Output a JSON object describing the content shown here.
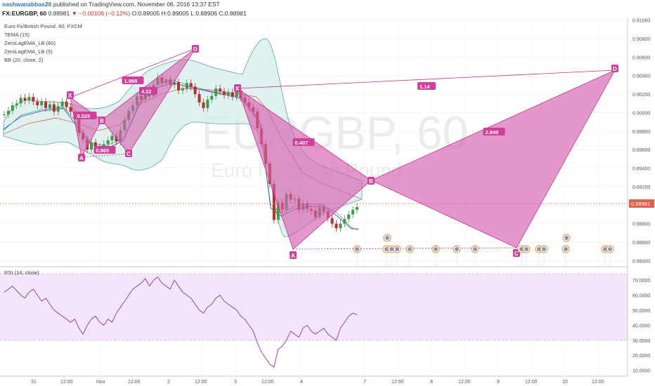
{
  "header": {
    "author": "nashwanabbas26",
    "published": "published on TradingView.com, November 06, 2016 13:37 EST",
    "symbol": "FX:EURGBP, 60",
    "last": "0.88981",
    "arrow": "▼",
    "change": "−0.00106 (−0.12%)",
    "ohlc": "O:0.89005 H:0.89005 L:0.88906 C:0.88981"
  },
  "legend": [
    "Euro Fx/British Pound, 60, FXCM",
    "TEMA (15)",
    "ZeroLagEMA_LB (60)",
    "ZeroLagEMA_LB (5)",
    "BB (20, close, 2)"
  ],
  "watermark": {
    "symbol": "EURGBP, 60",
    "name": "Euro Fx/British Pound"
  },
  "price_label": "0.88981",
  "rsi_label": "RSI (14, close)",
  "colors": {
    "pattern_fill": "#d65fae",
    "pattern_line": "#c2348e",
    "bb_fill": "#d6eeea",
    "bb_line": "#58a8a0",
    "rsi_line": "#8c4a9e",
    "rsi_band": "#f3e6fb",
    "price_line": "#e06050"
  },
  "chart_data": [
    {
      "type": "candlestick",
      "title": "Euro Fx/British Pound, 60, FXCM",
      "y_ticks": [
        "0.91000",
        "0.90800",
        "0.90600",
        "0.90400",
        "0.90200",
        "0.90000",
        "0.89800",
        "0.89600",
        "0.89400",
        "0.89200",
        "0.89000",
        "0.88800",
        "0.88600",
        "0.88400"
      ],
      "ylim": [
        0.8835,
        0.9102
      ],
      "x_ticks": [
        "31",
        "12:00",
        "Nov",
        "12:00",
        "2",
        "12:00",
        "3",
        "12:00",
        "4",
        "7",
        "12:00",
        "8",
        "12:00",
        "9",
        "12:00",
        "10",
        "12:00"
      ],
      "close_series": [
        0.8998,
        0.9002,
        0.9008,
        0.901,
        0.9016,
        0.9013,
        0.9017,
        0.9012,
        0.9008,
        0.9012,
        0.9005,
        0.9009,
        0.9001,
        0.9007,
        0.9012,
        0.9006,
        0.9001,
        0.8994,
        0.8978,
        0.8971,
        0.896,
        0.8968,
        0.8963,
        0.8961,
        0.8966,
        0.897,
        0.8975,
        0.8969,
        0.8981,
        0.8992,
        0.9002,
        0.9008,
        0.9018,
        0.9014,
        0.9025,
        0.9018,
        0.903,
        0.9038,
        0.9032,
        0.9036,
        0.903,
        0.9033,
        0.9024,
        0.9026,
        0.9032,
        0.9028,
        0.902,
        0.9011,
        0.9005,
        0.9014,
        0.9018,
        0.9026,
        0.9023,
        0.9019,
        0.9022,
        0.9017,
        0.9024,
        0.9016,
        0.9011,
        0.9006,
        0.9001,
        0.8983,
        0.8966,
        0.8945,
        0.8923,
        0.8884,
        0.8903,
        0.8895,
        0.8912,
        0.8906,
        0.8907,
        0.8895,
        0.8902,
        0.8896,
        0.8894,
        0.8887,
        0.8898,
        0.8893,
        0.8886,
        0.888,
        0.8875,
        0.888,
        0.8885,
        0.889,
        0.8895,
        0.8898
      ],
      "price_line": 0.88981,
      "patterns": [
        {
          "points": [
            "X",
            "A",
            "B",
            "C",
            "D"
          ],
          "ratios": [
            "0.525",
            "0.865",
            "1.988",
            "4.22"
          ]
        },
        {
          "points": [
            "X",
            "A",
            "B",
            "C",
            "D"
          ],
          "ratios": [
            "0.407",
            "2.849",
            "1.14"
          ]
        }
      ]
    },
    {
      "type": "line",
      "title": "RSI (14, close)",
      "y_ticks": [
        "70.0000",
        "60.0000",
        "50.0000",
        "40.0000",
        "30.0000",
        "20.0000",
        "10.0000"
      ],
      "ylim": [
        7,
        78
      ],
      "band": [
        30,
        70
      ],
      "values": [
        62,
        64,
        66,
        63,
        60,
        58,
        62,
        64,
        60,
        56,
        58,
        54,
        50,
        48,
        46,
        44,
        42,
        44,
        38,
        34,
        40,
        44,
        46,
        42,
        40,
        44,
        42,
        48,
        52,
        56,
        60,
        64,
        66,
        68,
        71,
        66,
        70,
        72,
        68,
        66,
        64,
        70,
        66,
        62,
        60,
        58,
        54,
        50,
        48,
        52,
        54,
        58,
        60,
        56,
        54,
        52,
        50,
        46,
        44,
        40,
        36,
        28,
        22,
        18,
        14,
        12,
        24,
        26,
        30,
        36,
        34,
        32,
        38,
        40,
        36,
        34,
        36,
        38,
        34,
        32,
        30,
        38,
        42,
        46,
        48,
        47
      ]
    }
  ]
}
